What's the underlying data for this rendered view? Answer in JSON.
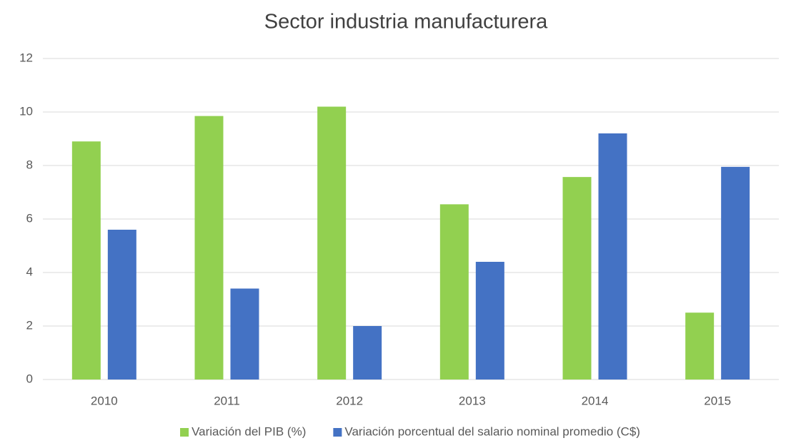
{
  "chart_data": {
    "type": "bar",
    "title": "Sector industria manufacturera",
    "categories": [
      "2010",
      "2011",
      "2012",
      "2013",
      "2014",
      "2015"
    ],
    "series": [
      {
        "name": "Variación del PIB (%)",
        "color": "#92d050",
        "values": [
          8.9,
          9.85,
          10.2,
          6.55,
          7.57,
          2.5
        ]
      },
      {
        "name": "Variación porcentual del salario nominal promedio (C$)",
        "color": "#4472c4",
        "values": [
          5.6,
          3.4,
          2.0,
          4.4,
          9.2,
          7.95
        ]
      }
    ],
    "ylim": [
      0,
      12
    ],
    "yticks": [
      0,
      2,
      4,
      6,
      8,
      10,
      12
    ],
    "grid": true,
    "legend": "bottom"
  }
}
